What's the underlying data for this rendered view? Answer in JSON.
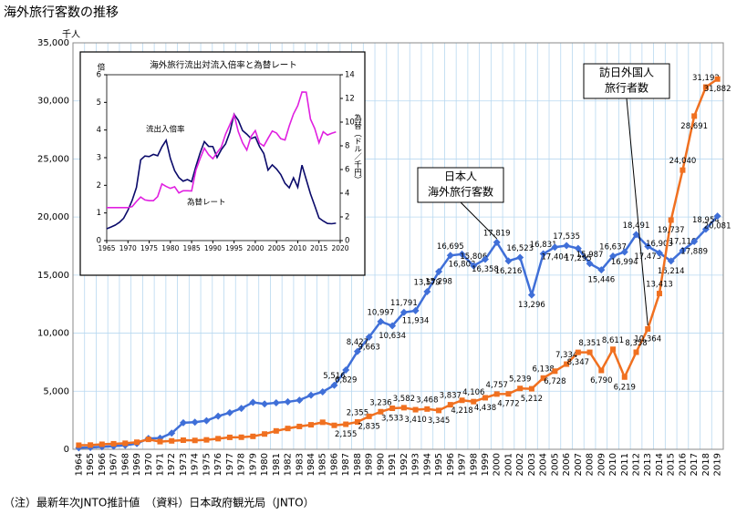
{
  "title": "海外旅行客数の推移",
  "note": "（注）最新年次JNTO推計値　（資料）日本政府観光局（JNTO）",
  "chart_data": [
    {
      "type": "line",
      "y_label": "千人",
      "categories": [
        "1964",
        "1965",
        "1966",
        "1967",
        "1968",
        "1969",
        "1970",
        "1971",
        "1972",
        "1973",
        "1974",
        "1975",
        "1976",
        "1977",
        "1978",
        "1979",
        "1980",
        "1981",
        "1982",
        "1983",
        "1984",
        "1985",
        "1986",
        "1987",
        "1988",
        "1989",
        "1990",
        "1991",
        "1992",
        "1993",
        "1994",
        "1995",
        "1996",
        "1997",
        "1998",
        "1999",
        "2000",
        "2001",
        "2002",
        "2003",
        "2004",
        "2005",
        "2006",
        "2007",
        "2008",
        "2009",
        "2010",
        "2011",
        "2012",
        "2013",
        "2014",
        "2015",
        "2016",
        "2017",
        "2018",
        "2019"
      ],
      "ylim": [
        0,
        35000
      ],
      "yticks": [
        0,
        {
          "value": 5000,
          "label": "5,000"
        },
        {
          "value": 10000,
          "label": "10,000"
        },
        {
          "value": 15000,
          "label": "15,000"
        },
        {
          "value": 20000,
          "label": "20,000"
        },
        {
          "value": 25000,
          "label": "25,000"
        },
        {
          "value": 30000,
          "label": "30,000"
        },
        {
          "value": 35000,
          "label": "35,000"
        }
      ],
      "grid": true,
      "series": [
        {
          "name": "日本人海外旅行客数",
          "color": "#3f6fd8",
          "marker": "diamond",
          "values": [
            128,
            159,
            212,
            268,
            344,
            493,
            936,
            961,
            1392,
            2289,
            2336,
            2466,
            2853,
            3151,
            3525,
            4039,
            3909,
            4007,
            4086,
            4232,
            4659,
            4948,
            5516,
            6829,
            8427,
            9663,
            10997,
            10634,
            11791,
            11934,
            13579,
            15298,
            16695,
            16803,
            15806,
            16358,
            17819,
            16216,
            16523,
            13296,
            16831,
            17404,
            17535,
            17295,
            15987,
            15446,
            16637,
            16994,
            18491,
            17473,
            16903,
            16214,
            17116,
            17889,
            18954,
            20081
          ],
          "value_labels": [
            null,
            null,
            null,
            null,
            null,
            null,
            null,
            null,
            null,
            null,
            null,
            null,
            null,
            null,
            null,
            null,
            null,
            null,
            null,
            null,
            null,
            null,
            "5,516",
            "6,829",
            "8,427",
            "9,663",
            "10,997",
            "10,634",
            "11,791",
            "11,934",
            "13,579",
            "15,298",
            "16,695",
            "16,803",
            "15,806",
            "16,358",
            "17,819",
            "16,216",
            "16,523",
            "13,296",
            "16,831",
            "17,404",
            "17,535",
            "17,295",
            "15,987",
            "15,446",
            "16,637",
            "16,994",
            "18,491",
            "17,473",
            "16,903",
            "16,214",
            "17,116",
            "17,889",
            "18,954",
            "20,081"
          ]
        },
        {
          "name": "訪日外国人旅行者数",
          "color": "#f07020",
          "marker": "square",
          "values": [
            353,
            367,
            433,
            477,
            519,
            609,
            854,
            660,
            724,
            785,
            764,
            812,
            915,
            1028,
            1039,
            1113,
            1317,
            1583,
            1793,
            1968,
            2110,
            2327,
            2062,
            2155,
            2355,
            2835,
            3236,
            3533,
            3582,
            3410,
            3468,
            3345,
            3837,
            4218,
            4106,
            4438,
            4757,
            4772,
            5239,
            5212,
            6138,
            6728,
            7334,
            8347,
            8351,
            6790,
            8611,
            6219,
            8358,
            10364,
            13413,
            19737,
            24040,
            28691,
            31192,
            31882
          ],
          "value_labels": [
            null,
            null,
            null,
            null,
            null,
            null,
            null,
            null,
            null,
            null,
            null,
            null,
            null,
            null,
            null,
            null,
            null,
            null,
            null,
            null,
            null,
            null,
            null,
            "2,155",
            "2,355",
            "2,835",
            "3,236",
            "3,533",
            "3,582",
            "3,410",
            "3,468",
            "3,345",
            "3,837",
            "4,218",
            "4,106",
            "4,438",
            "4,757",
            "4,772",
            "5,239",
            "5,212",
            "6,138",
            "6,728",
            "7,334",
            "8,347",
            "8,351",
            "6,790",
            "8,611",
            "6,219",
            "8,358",
            "10,364",
            "13,413",
            "19,737",
            "24,040",
            "28,691",
            "31,192",
            "31,882"
          ]
        }
      ],
      "annotations": [
        [
          "日本人",
          "海外旅行客数"
        ],
        [
          "訪日外国人",
          "旅行者数"
        ]
      ]
    },
    {
      "type": "line",
      "title": "海外旅行流出対流入倍率と為替レート",
      "y_label": "倍",
      "y2_label": "為替（ドル／千円）",
      "xlim": [
        1965,
        2020
      ],
      "xticks": [
        1965,
        1970,
        1975,
        1980,
        1985,
        1990,
        1995,
        2000,
        2005,
        2010,
        2015,
        2020
      ],
      "ylim": [
        0,
        6
      ],
      "yticks": [
        0,
        1,
        2,
        3,
        4,
        5,
        6
      ],
      "y2lim": [
        0,
        14
      ],
      "y2ticks": [
        0,
        2,
        4,
        6,
        8,
        10,
        12,
        14
      ],
      "x": [
        1965,
        1966,
        1967,
        1968,
        1969,
        1970,
        1971,
        1972,
        1973,
        1974,
        1975,
        1976,
        1977,
        1978,
        1979,
        1980,
        1981,
        1982,
        1983,
        1984,
        1985,
        1986,
        1987,
        1988,
        1989,
        1990,
        1991,
        1992,
        1993,
        1994,
        1995,
        1996,
        1997,
        1998,
        1999,
        2000,
        2001,
        2002,
        2003,
        2004,
        2005,
        2006,
        2007,
        2008,
        2009,
        2010,
        2011,
        2012,
        2013,
        2014,
        2015,
        2016,
        2017,
        2018,
        2019
      ],
      "series": [
        {
          "name": "流出入倍率",
          "color": "#0a0a6a",
          "values": [
            0.43,
            0.49,
            0.56,
            0.66,
            0.81,
            1.1,
            1.46,
            1.92,
            2.92,
            3.06,
            3.04,
            3.12,
            3.07,
            3.39,
            3.63,
            2.97,
            2.53,
            2.28,
            2.15,
            2.21,
            2.13,
            2.68,
            3.17,
            3.58,
            3.41,
            3.4,
            3.01,
            3.29,
            3.5,
            3.92,
            4.57,
            4.35,
            3.98,
            3.85,
            3.69,
            3.75,
            3.4,
            3.15,
            2.55,
            2.74,
            2.59,
            2.39,
            2.07,
            1.91,
            2.27,
            1.93,
            2.73,
            2.21,
            1.69,
            1.26,
            0.82,
            0.71,
            0.62,
            0.61,
            0.63
          ]
        },
        {
          "name": "為替レート",
          "color": "#e020e0",
          "axis": "y2",
          "values": [
            2.78,
            2.78,
            2.78,
            2.78,
            2.78,
            2.78,
            2.87,
            3.3,
            3.68,
            3.43,
            3.37,
            3.37,
            3.72,
            4.78,
            4.57,
            4.41,
            4.54,
            4.02,
            4.21,
            4.21,
            4.19,
            5.94,
            6.92,
            7.8,
            7.25,
            6.91,
            7.43,
            7.9,
            8.99,
            9.78,
            10.63,
            9.19,
            8.26,
            7.64,
            8.79,
            9.28,
            8.23,
            7.98,
            8.63,
            9.25,
            9.08,
            8.6,
            8.49,
            9.68,
            10.69,
            11.39,
            12.54,
            12.53,
            10.25,
            9.46,
            8.26,
            9.19,
            8.91,
            9.06,
            9.17
          ]
        }
      ]
    }
  ]
}
